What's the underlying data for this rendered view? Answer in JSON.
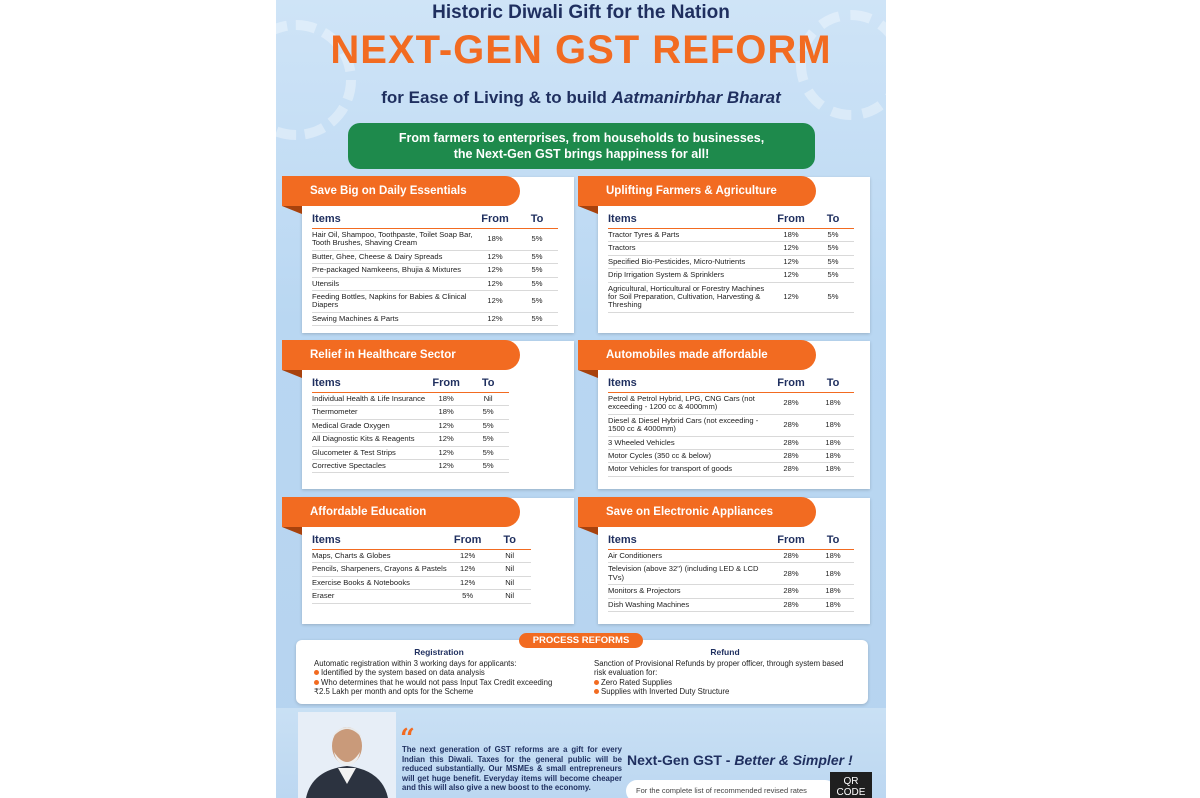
{
  "header": {
    "top_line": "Historic Diwali Gift for the Nation",
    "main_title": "NEXT-GEN GST REFORM",
    "subtitle_plain": "for Ease of Living & to build ",
    "subtitle_italic": "Aatmanirbhar Bharat"
  },
  "banner": {
    "line1": "From farmers to enterprises, from households to businesses,",
    "line2": "the Next-Gen GST brings happiness for all!"
  },
  "table_headers": {
    "items": "Items",
    "from": "From",
    "to": "To"
  },
  "sections": {
    "essentials": {
      "title": "Save Big on Daily Essentials",
      "rows": [
        {
          "item": "Hair Oil, Shampoo, Toothpaste, Toilet Soap Bar, Tooth Brushes, Shaving Cream",
          "from": "18%",
          "to": "5%"
        },
        {
          "item": "Butter, Ghee, Cheese & Dairy Spreads",
          "from": "12%",
          "to": "5%"
        },
        {
          "item": "Pre-packaged Namkeens, Bhujia & Mixtures",
          "from": "12%",
          "to": "5%"
        },
        {
          "item": "Utensils",
          "from": "12%",
          "to": "5%"
        },
        {
          "item": "Feeding Bottles, Napkins for Babies & Clinical Diapers",
          "from": "12%",
          "to": "5%"
        },
        {
          "item": "Sewing Machines & Parts",
          "from": "12%",
          "to": "5%"
        }
      ]
    },
    "farmers": {
      "title": "Uplifting Farmers & Agriculture",
      "rows": [
        {
          "item": "Tractor Tyres & Parts",
          "from": "18%",
          "to": "5%"
        },
        {
          "item": "Tractors",
          "from": "12%",
          "to": "5%"
        },
        {
          "item": "Specified Bio-Pesticides, Micro-Nutrients",
          "from": "12%",
          "to": "5%"
        },
        {
          "item": "Drip Irrigation System & Sprinklers",
          "from": "12%",
          "to": "5%"
        },
        {
          "item": "Agricultural, Horticultural or Forestry Machines for Soil Preparation, Cultivation, Harvesting & Threshing",
          "from": "12%",
          "to": "5%"
        }
      ]
    },
    "healthcare": {
      "title": "Relief in Healthcare Sector",
      "rows": [
        {
          "item": "Individual Health & Life Insurance",
          "from": "18%",
          "to": "Nil"
        },
        {
          "item": "Thermometer",
          "from": "18%",
          "to": "5%"
        },
        {
          "item": "Medical Grade Oxygen",
          "from": "12%",
          "to": "5%"
        },
        {
          "item": "All Diagnostic Kits & Reagents",
          "from": "12%",
          "to": "5%"
        },
        {
          "item": "Glucometer & Test Strips",
          "from": "12%",
          "to": "5%"
        },
        {
          "item": "Corrective Spectacles",
          "from": "12%",
          "to": "5%"
        }
      ]
    },
    "automobiles": {
      "title": "Automobiles made affordable",
      "rows": [
        {
          "item": "Petrol & Petrol Hybrid, LPG, CNG Cars (not exceeding - 1200 cc & 4000mm)",
          "from": "28%",
          "to": "18%"
        },
        {
          "item": "Diesel & Diesel Hybrid Cars (not exceeding - 1500 cc & 4000mm)",
          "from": "28%",
          "to": "18%"
        },
        {
          "item": "3 Wheeled Vehicles",
          "from": "28%",
          "to": "18%"
        },
        {
          "item": "Motor Cycles (350 cc & below)",
          "from": "28%",
          "to": "18%"
        },
        {
          "item": "Motor Vehicles for transport of goods",
          "from": "28%",
          "to": "18%"
        }
      ]
    },
    "education": {
      "title": "Affordable Education",
      "rows": [
        {
          "item": "Maps, Charts & Globes",
          "from": "12%",
          "to": "Nil"
        },
        {
          "item": "Pencils, Sharpeners, Crayons & Pastels",
          "from": "12%",
          "to": "Nil"
        },
        {
          "item": "Exercise Books & Notebooks",
          "from": "12%",
          "to": "Nil"
        },
        {
          "item": "Eraser",
          "from": "5%",
          "to": "Nil"
        }
      ]
    },
    "electronics": {
      "title": "Save on Electronic Appliances",
      "rows": [
        {
          "item": "Air Conditioners",
          "from": "28%",
          "to": "18%"
        },
        {
          "item": "Television (above 32\") (including LED & LCD TVs)",
          "from": "28%",
          "to": "18%"
        },
        {
          "item": "Monitors & Projectors",
          "from": "28%",
          "to": "18%"
        },
        {
          "item": "Dish Washing Machines",
          "from": "28%",
          "to": "18%"
        }
      ]
    }
  },
  "process": {
    "title": "PROCESS REFORMS",
    "registration": {
      "heading": "Registration",
      "intro": "Automatic registration within 3 working days for applicants:",
      "bullets": [
        "Identified by the system based on data analysis",
        "Who determines that he would not pass Input Tax Credit exceeding ₹2.5 Lakh per month and opts for the Scheme"
      ]
    },
    "refund": {
      "heading": "Refund",
      "intro": "Sanction of Provisional Refunds by proper officer, through system based risk evaluation for:",
      "bullets": [
        "Zero Rated Supplies",
        "Supplies with Inverted Duty Structure"
      ]
    }
  },
  "footer": {
    "quote": "The next generation of GST reforms are a gift for every Indian this Diwali. Taxes for the general public will be reduced substantially. Our MSMEs & small entrepreneurs will get huge benefit. Everyday items will become cheaper and this will also give a new boost to the economy.",
    "tagline_plain": "Next-Gen GST - ",
    "tagline_italic": "Better & Simpler !",
    "list_note": "For the complete list of recommended revised rates",
    "qr_label": "QR CODE"
  },
  "colors": {
    "accent": "#f26b21",
    "navy": "#1f2f5f",
    "green": "#1e8a4c"
  }
}
